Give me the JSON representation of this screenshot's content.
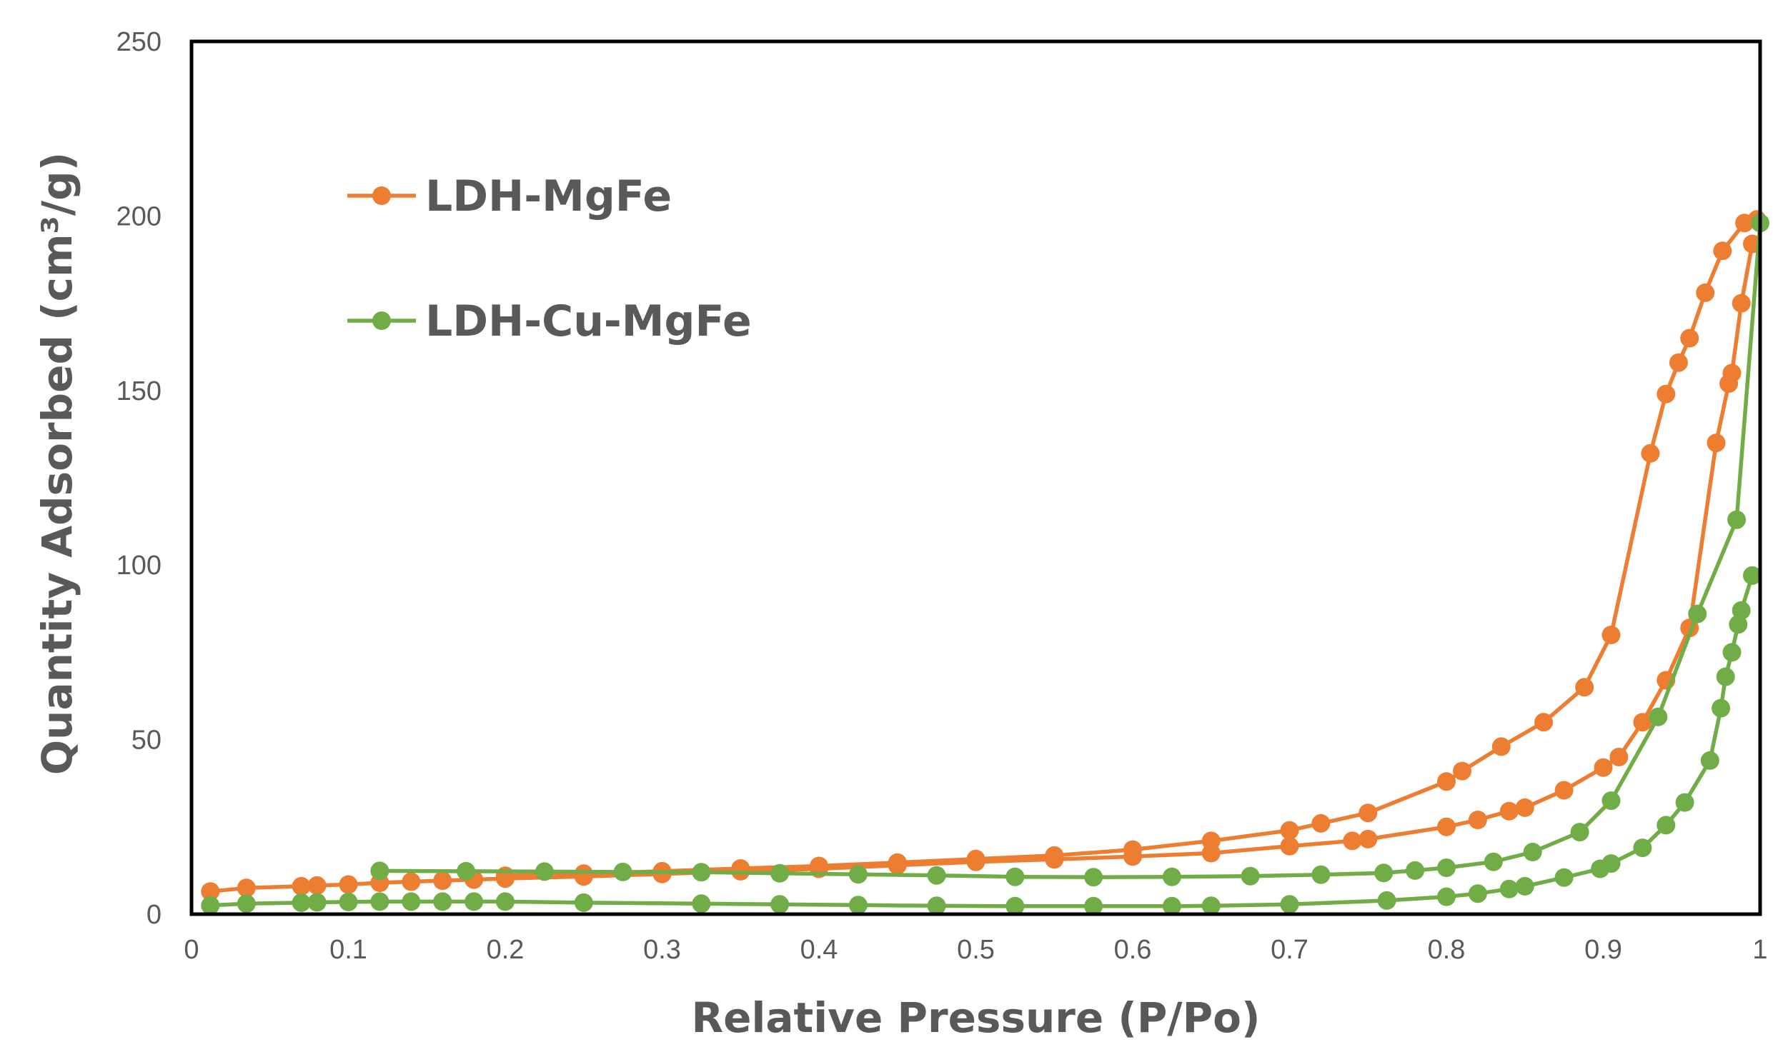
{
  "chart_data": {
    "type": "line",
    "title": "",
    "xlabel": "Relative Pressure (P/Po)",
    "ylabel": "Quantity Adsorbed (cm³/g)",
    "xlim": [
      0,
      1
    ],
    "ylim": [
      0,
      250
    ],
    "x_ticks": [
      "0",
      "0.1",
      "0.2",
      "0.3",
      "0.4",
      "0.5",
      "0.6",
      "0.7",
      "0.8",
      "0.9",
      "1"
    ],
    "y_ticks": [
      "0",
      "50",
      "100",
      "150",
      "200",
      "250"
    ],
    "grid": false,
    "legend_position": "top-left",
    "series": [
      {
        "name": "LDH-MgFe",
        "color": "#ED7D31",
        "adsorption": {
          "x": [
            0.012,
            0.035,
            0.07,
            0.08,
            0.1,
            0.12,
            0.14,
            0.16,
            0.18,
            0.2,
            0.25,
            0.3,
            0.35,
            0.4,
            0.45,
            0.5,
            0.55,
            0.6,
            0.65,
            0.7,
            0.74,
            0.75,
            0.8,
            0.82,
            0.84,
            0.85,
            0.875,
            0.9,
            0.91,
            0.925,
            0.94,
            0.955,
            0.972,
            0.98,
            0.982,
            0.988,
            0.995
          ],
          "y": [
            6.5,
            7.5,
            8,
            8.2,
            8.5,
            9,
            9.3,
            9.6,
            9.9,
            10.2,
            10.8,
            11.5,
            12.3,
            13,
            14,
            15,
            15.7,
            16.5,
            17.5,
            19.5,
            21,
            21.5,
            25,
            27,
            29.5,
            30.5,
            35.5,
            42,
            45,
            55,
            67,
            82,
            135,
            152,
            155,
            175,
            192
          ]
        },
        "desorption": {
          "x": [
            0.998,
            0.99,
            0.976,
            0.965,
            0.955,
            0.948,
            0.94,
            0.93,
            0.905,
            0.888,
            0.862,
            0.835,
            0.81,
            0.8,
            0.75,
            0.72,
            0.7,
            0.65,
            0.6,
            0.55,
            0.5,
            0.45,
            0.4,
            0.35,
            0.3,
            0.25,
            0.2
          ],
          "y": [
            199,
            198,
            190,
            178,
            165,
            158,
            149,
            132,
            80,
            65,
            55,
            48,
            41,
            38,
            29,
            26,
            24,
            21,
            18.5,
            16.8,
            15.8,
            14.8,
            13.8,
            13.1,
            12.3,
            11.6,
            11
          ]
        }
      },
      {
        "name": "LDH-Cu-MgFe",
        "color": "#70AD47",
        "adsorption": {
          "x": [
            0.012,
            0.035,
            0.07,
            0.08,
            0.1,
            0.12,
            0.14,
            0.16,
            0.18,
            0.2,
            0.25,
            0.325,
            0.375,
            0.425,
            0.475,
            0.525,
            0.575,
            0.625,
            0.65,
            0.7,
            0.762,
            0.8,
            0.82,
            0.84,
            0.85,
            0.875,
            0.898,
            0.905,
            0.925,
            0.94,
            0.952,
            0.968,
            0.975,
            0.978,
            0.982,
            0.986,
            0.988,
            0.995
          ],
          "y": [
            2.5,
            3,
            3.3,
            3.4,
            3.5,
            3.6,
            3.6,
            3.6,
            3.6,
            3.6,
            3.3,
            3,
            2.8,
            2.6,
            2.4,
            2.3,
            2.3,
            2.3,
            2.4,
            2.8,
            3.9,
            5,
            5.9,
            7.2,
            8,
            10.5,
            13,
            14.5,
            19,
            25.5,
            32,
            44,
            59,
            68,
            75,
            83,
            87,
            97
          ]
        },
        "desorption": {
          "x": [
            1.0,
            0.985,
            0.96,
            0.935,
            0.905,
            0.885,
            0.855,
            0.83,
            0.8,
            0.78,
            0.76,
            0.72,
            0.675,
            0.625,
            0.575,
            0.525,
            0.475,
            0.425,
            0.375,
            0.325,
            0.275,
            0.225,
            0.175,
            0.12
          ],
          "y": [
            198,
            113,
            86,
            56.5,
            32.5,
            23.5,
            17.8,
            15,
            13.3,
            12.5,
            11.8,
            11.3,
            10.9,
            10.7,
            10.6,
            10.7,
            11.1,
            11.4,
            11.7,
            12,
            12.1,
            12.2,
            12.3,
            12.4
          ]
        }
      }
    ]
  }
}
